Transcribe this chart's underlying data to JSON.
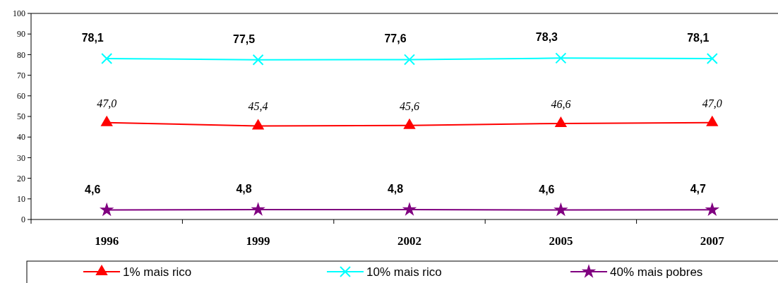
{
  "chart_data": {
    "type": "line",
    "categories": [
      "1996",
      "1999",
      "2002",
      "2005",
      "2007"
    ],
    "series": [
      {
        "name": "1% mais rico",
        "color": "#ff0000",
        "marker": "triangle",
        "values": [
          47.0,
          45.4,
          45.6,
          46.6,
          47.0
        ],
        "value_labels": [
          "47,0",
          "45,4",
          "45,6",
          "46,6",
          "47,0"
        ]
      },
      {
        "name": "10% mais rico",
        "color": "#00ffff",
        "marker": "cross",
        "values": [
          78.1,
          77.5,
          77.6,
          78.3,
          78.1
        ],
        "value_labels": [
          "78,1",
          "77,5",
          "77,6",
          "78,3",
          "78,1"
        ]
      },
      {
        "name": "40% mais pobres",
        "color": "#800080",
        "marker": "star",
        "values": [
          4.6,
          4.8,
          4.8,
          4.6,
          4.7
        ],
        "value_labels": [
          "4,6",
          "4,8",
          "4,8",
          "4,6",
          "4,7"
        ]
      }
    ],
    "ylim": [
      0,
      100
    ],
    "yticks": [
      0,
      10,
      20,
      30,
      40,
      50,
      60,
      70,
      80,
      90,
      100
    ],
    "grid": false,
    "legend": "bottom",
    "line_style": "solid"
  }
}
